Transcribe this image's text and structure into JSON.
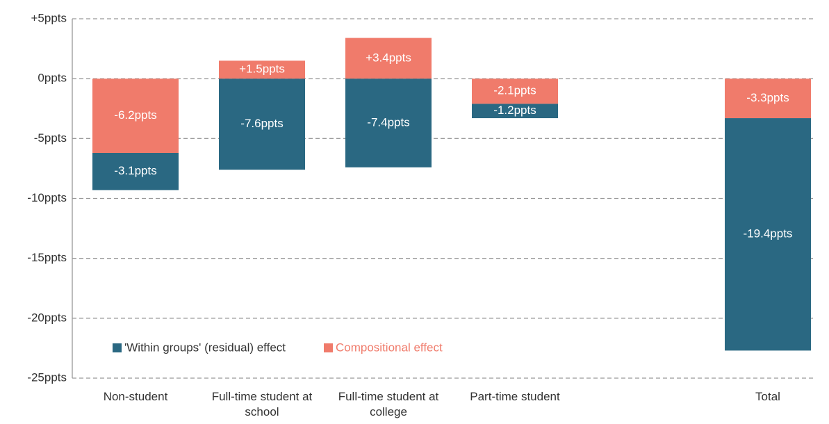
{
  "chart_data": {
    "type": "bar",
    "categories": [
      "Non-student",
      "Full-time student at school",
      "Full-time student at college",
      "Part-time student",
      null,
      "Total"
    ],
    "series": [
      {
        "name": "'Within groups' (residual) effect",
        "color": "#2a6882",
        "values": [
          -3.1,
          -7.6,
          -7.4,
          -1.2,
          null,
          -19.4
        ],
        "value_labels": [
          "-3.1ppts",
          "-7.6ppts",
          "-7.4ppts",
          "-1.2ppts",
          null,
          "-19.4ppts"
        ]
      },
      {
        "name": "Compositional effect",
        "color": "#f07b6b",
        "values": [
          -6.2,
          1.5,
          3.4,
          -2.1,
          null,
          -3.3
        ],
        "value_labels": [
          "-6.2ppts",
          "+1.5ppts",
          "+3.4ppts",
          "-2.1ppts",
          null,
          "-3.3ppts"
        ]
      }
    ],
    "ylim": [
      -25,
      5
    ],
    "yticks": [
      {
        "value": 5,
        "label": "+5ppts"
      },
      {
        "value": 0,
        "label": "0ppts"
      },
      {
        "value": -5,
        "label": "-5ppts"
      },
      {
        "value": -10,
        "label": "-10ppts"
      },
      {
        "value": -15,
        "label": "-15ppts"
      },
      {
        "value": -20,
        "label": "-20ppts"
      },
      {
        "value": -25,
        "label": "-25ppts"
      }
    ],
    "grid": true,
    "stacked": true
  }
}
